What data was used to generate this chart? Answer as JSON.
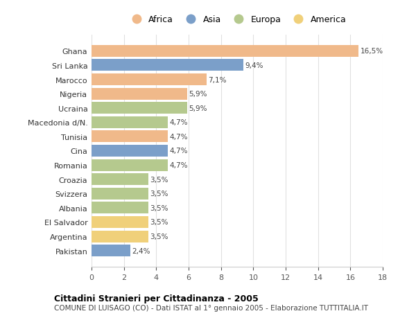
{
  "countries": [
    "Ghana",
    "Sri Lanka",
    "Marocco",
    "Nigeria",
    "Ucraina",
    "Macedonia d/N.",
    "Tunisia",
    "Cina",
    "Romania",
    "Croazia",
    "Svizzera",
    "Albania",
    "El Salvador",
    "Argentina",
    "Pakistan"
  ],
  "values": [
    16.5,
    9.4,
    7.1,
    5.9,
    5.9,
    4.7,
    4.7,
    4.7,
    4.7,
    3.5,
    3.5,
    3.5,
    3.5,
    3.5,
    2.4
  ],
  "labels": [
    "16,5%",
    "9,4%",
    "7,1%",
    "5,9%",
    "5,9%",
    "4,7%",
    "4,7%",
    "4,7%",
    "4,7%",
    "3,5%",
    "3,5%",
    "3,5%",
    "3,5%",
    "3,5%",
    "2,4%"
  ],
  "continents": [
    "Africa",
    "Asia",
    "Africa",
    "Africa",
    "Europa",
    "Europa",
    "Africa",
    "Asia",
    "Europa",
    "Europa",
    "Europa",
    "Europa",
    "America",
    "America",
    "Asia"
  ],
  "colors": {
    "Africa": "#F0B98A",
    "Asia": "#7B9FC9",
    "Europa": "#B5C98E",
    "America": "#F0D07A"
  },
  "legend_order": [
    "Africa",
    "Asia",
    "Europa",
    "America"
  ],
  "xlim": [
    0,
    18
  ],
  "xticks": [
    0,
    2,
    4,
    6,
    8,
    10,
    12,
    14,
    16,
    18
  ],
  "title": "Cittadini Stranieri per Cittadinanza - 2005",
  "subtitle": "COMUNE DI LUISAGO (CO) - Dati ISTAT al 1° gennaio 2005 - Elaborazione TUTTITALIA.IT",
  "bg_color": "#ffffff",
  "grid_color": "#e0e0e0"
}
